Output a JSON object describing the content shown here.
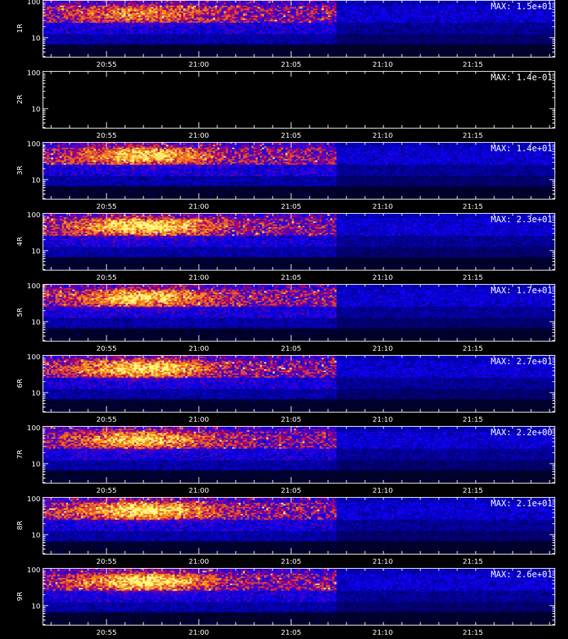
{
  "chart_data": {
    "type": "heatmap",
    "x_ticks": [
      "20:55",
      "21:00",
      "21:05",
      "21:10",
      "21:15"
    ],
    "y_ticks": [
      "100",
      "10"
    ],
    "ylog": true,
    "xlabel": "",
    "panels": [
      {
        "ylabel": "1R",
        "max_label": "MAX: 1.5e+01",
        "max": 15,
        "intensity": 0.55
      },
      {
        "ylabel": "2R",
        "max_label": "MAX: 1.4e-01",
        "max": 0.14,
        "intensity": 0.0
      },
      {
        "ylabel": "3R",
        "max_label": "MAX: 1.4e+01",
        "max": 14,
        "intensity": 0.85
      },
      {
        "ylabel": "4R",
        "max_label": "MAX: 2.3e+01",
        "max": 23,
        "intensity": 1.0
      },
      {
        "ylabel": "5R",
        "max_label": "MAX: 1.7e+01",
        "max": 17,
        "intensity": 0.9
      },
      {
        "ylabel": "6R",
        "max_label": "MAX: 2.7e+01",
        "max": 27,
        "intensity": 0.95
      },
      {
        "ylabel": "7R",
        "max_label": "MAX: 2.2e+00",
        "max": 2.2,
        "intensity": 0.8
      },
      {
        "ylabel": "8R",
        "max_label": "MAX: 2.1e+01",
        "max": 21,
        "intensity": 1.0
      },
      {
        "ylabel": "9R",
        "max_label": "MAX: 2.6e+01",
        "max": 26,
        "intensity": 0.95
      }
    ]
  }
}
